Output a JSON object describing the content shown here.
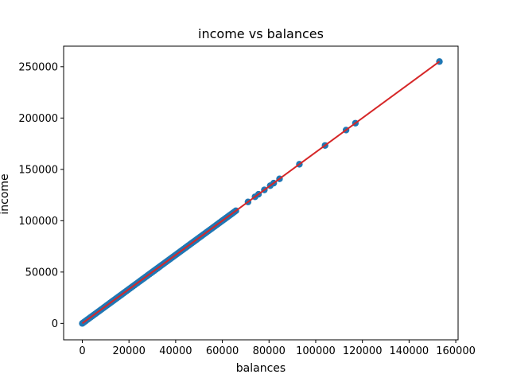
{
  "chart_data": {
    "type": "scatter",
    "title": "income vs balances",
    "xlabel": "balances",
    "ylabel": "income",
    "xlim": [
      -8000,
      161000
    ],
    "ylim": [
      -16000,
      270000
    ],
    "xticks": [
      0,
      20000,
      40000,
      60000,
      80000,
      100000,
      120000,
      140000,
      160000
    ],
    "yticks": [
      0,
      50000,
      100000,
      150000,
      200000,
      250000
    ],
    "grid": false,
    "legend": "none",
    "colors": {
      "points": "#1f77b4",
      "fit_line": "#d62728"
    },
    "series": [
      {
        "kind": "points",
        "dense_range": {
          "from": 0,
          "to": 66000,
          "step": 700,
          "slope": 1.667,
          "intercept": 0
        },
        "points": [
          [
            71000,
            118300
          ],
          [
            74000,
            123300
          ],
          [
            75500,
            125800
          ],
          [
            78000,
            130000
          ],
          [
            80500,
            134100
          ],
          [
            82000,
            136600
          ],
          [
            84500,
            140800
          ],
          [
            93000,
            155000
          ],
          [
            104000,
            173300
          ],
          [
            113000,
            188300
          ],
          [
            117000,
            195000
          ],
          [
            153000,
            255000
          ]
        ]
      },
      {
        "kind": "fit_line",
        "x": [
          0,
          153000
        ],
        "y": [
          0,
          255000
        ]
      }
    ]
  }
}
